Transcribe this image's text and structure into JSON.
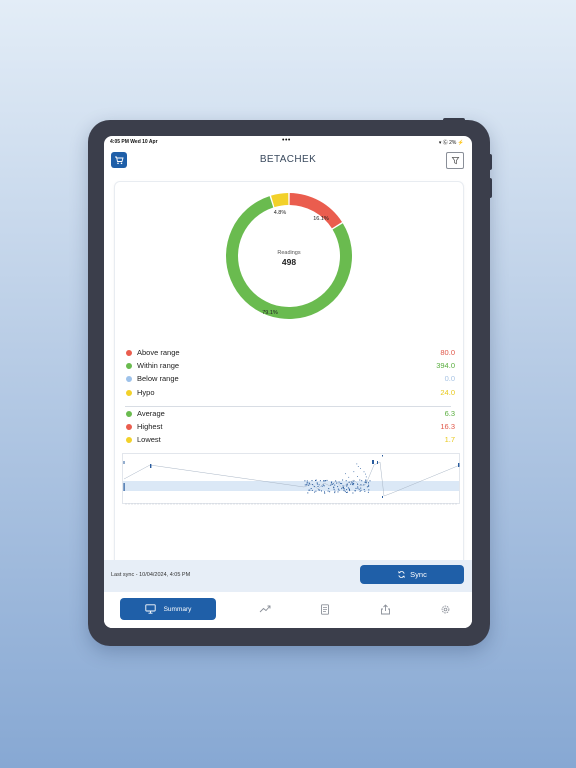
{
  "status_bar": {
    "time": "4:05 PM  Wed 10 Apr",
    "dots": "•••",
    "right": "▾ Ⓖ 2% ⚡"
  },
  "header": {
    "logo": "BETACHEK",
    "cart_icon": "cart-icon",
    "filter_icon": "filter-icon"
  },
  "donut": {
    "center_label": "Readings",
    "center_value": "498",
    "segments": [
      {
        "name": "Above range",
        "percent_label": "16.1%",
        "value": 16.1,
        "color": "#ea5d4e"
      },
      {
        "name": "Within range",
        "percent_label": "79.1%",
        "value": 79.1,
        "color": "#6abb4f"
      },
      {
        "name": "Hypo",
        "percent_label": "4.8%",
        "value": 4.8,
        "color": "#f2d12a"
      }
    ]
  },
  "ranges": [
    {
      "label": "Above range",
      "value": "80.0",
      "dot_color": "#ea5d4e",
      "value_color": "#e0584a"
    },
    {
      "label": "Within range",
      "value": "394.0",
      "dot_color": "#6abb4f",
      "value_color": "#5aae3f"
    },
    {
      "label": "Below range",
      "value": "0.0",
      "dot_color": "#9ec2ea",
      "value_color": "#a8c4e4"
    },
    {
      "label": "Hypo",
      "value": "24.0",
      "dot_color": "#f2d12a",
      "value_color": "#e8c91c"
    }
  ],
  "stats": [
    {
      "label": "Average",
      "value": "6.3",
      "dot_color": "#6abb4f",
      "value_color": "#5aae3f"
    },
    {
      "label": "Highest",
      "value": "16.3",
      "dot_color": "#ea5d4e",
      "value_color": "#e0584a"
    },
    {
      "label": "Lowest",
      "value": "1.7",
      "dot_color": "#f2d12a",
      "value_color": "#e8c91c"
    }
  ],
  "sync": {
    "last_sync": "Last sync - 10/04/2024, 4:05 PM",
    "button_label": "Sync",
    "icon": "sync-icon"
  },
  "tabs": [
    {
      "label": "Summary",
      "icon": "monitor-icon",
      "active": true
    },
    {
      "label": "",
      "icon": "trend-icon"
    },
    {
      "label": "",
      "icon": "report-icon"
    },
    {
      "label": "",
      "icon": "share-icon"
    },
    {
      "label": "",
      "icon": "gear-icon"
    }
  ]
}
